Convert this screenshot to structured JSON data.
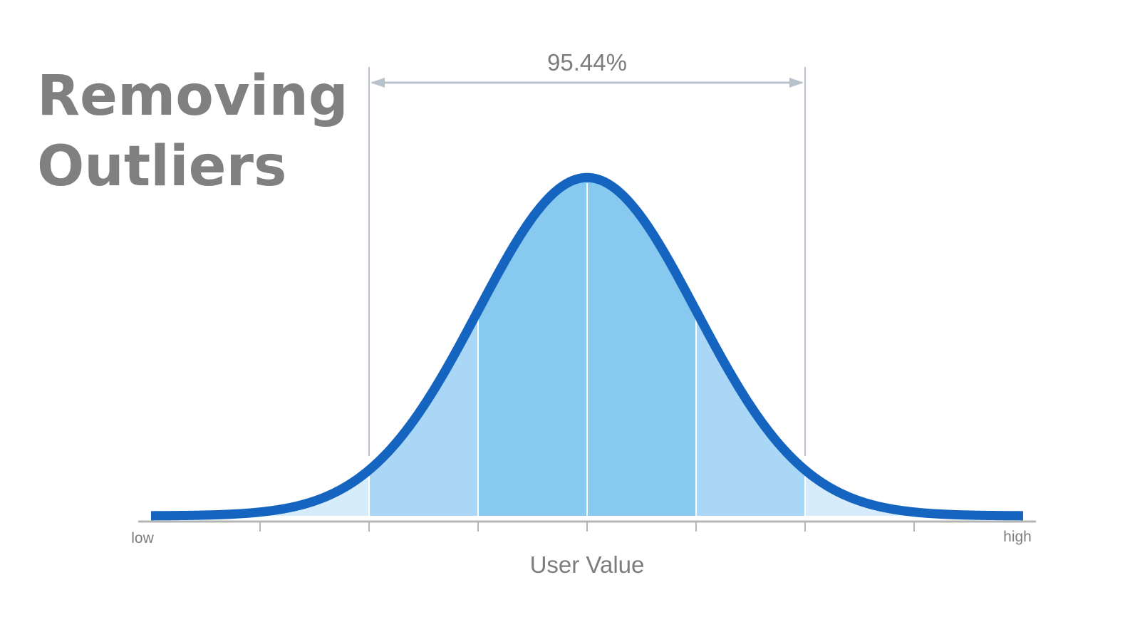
{
  "slide": {
    "title_lines": [
      "Removing",
      "Outliers"
    ]
  },
  "chart_data": {
    "type": "area",
    "distribution": "normal",
    "x": [
      -4,
      -3.5,
      -3,
      -2.5,
      -2,
      -1.5,
      -1,
      -0.5,
      0,
      0.5,
      1,
      1.5,
      2,
      2.5,
      3,
      3.5,
      4
    ],
    "y": [
      0.0001,
      0.0009,
      0.0044,
      0.0175,
      0.054,
      0.1295,
      0.242,
      0.3521,
      0.3989,
      0.3521,
      0.242,
      0.1295,
      0.054,
      0.0175,
      0.0044,
      0.0009,
      0.0001
    ],
    "xlim": [
      -4,
      4
    ],
    "ylim": [
      0,
      0.4
    ],
    "sigma_ticks": [
      -3,
      -2,
      -1,
      0,
      1,
      2,
      3
    ],
    "bands": [
      {
        "from": -4,
        "to": -2,
        "shade": "light"
      },
      {
        "from": -2,
        "to": -1,
        "shade": "medium"
      },
      {
        "from": -1,
        "to": 1,
        "shade": "dark"
      },
      {
        "from": 1,
        "to": 2,
        "shade": "medium"
      },
      {
        "from": 2,
        "to": 4,
        "shade": "light"
      }
    ],
    "annotation": {
      "label": "95.44%",
      "from": -2,
      "to": 2
    },
    "xlabel": "User Value",
    "x_end_labels": {
      "left": "low",
      "right": "high"
    },
    "colors": {
      "curve": "#1565c0",
      "band_light": "#d7ecfa",
      "band_medium": "#a9d7f5",
      "band_dark": "#87c9ef",
      "guide": "#b8c2cc",
      "axis": "#b5b5b5",
      "text": "#7d7d7d"
    }
  }
}
